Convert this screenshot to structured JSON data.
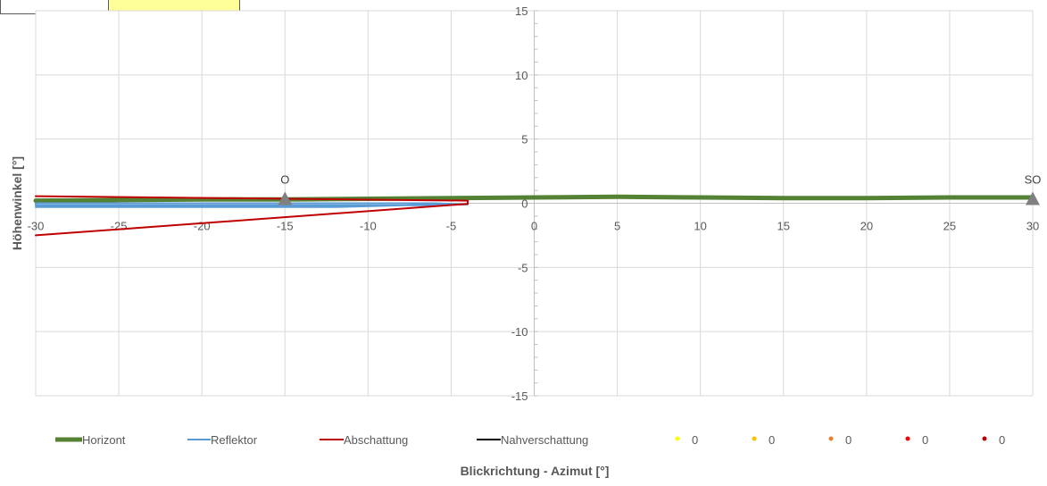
{
  "chart_data": {
    "type": "line",
    "title": "",
    "xlabel": "Blickrichtung - Azimut [°]",
    "ylabel": "Höhenwinkel [°]",
    "xlim": [
      -30,
      30
    ],
    "ylim": [
      -15,
      15
    ],
    "x_ticks": [
      "-30",
      "-25",
      "-20",
      "-15",
      "-10",
      "-5",
      "0",
      "5",
      "10",
      "15",
      "20",
      "25",
      "30"
    ],
    "y_ticks": [
      "15",
      "10",
      "5",
      "0",
      "-5",
      "-10",
      "-15"
    ],
    "grid": true,
    "legend_position": "bottom",
    "series": [
      {
        "name": "Horizont",
        "color": "#548235",
        "style": "line-thick",
        "points": [
          [
            -30,
            0.2
          ],
          [
            -25,
            0.25
          ],
          [
            -20,
            0.3
          ],
          [
            -15,
            0.3
          ],
          [
            -10,
            0.35
          ],
          [
            -5,
            0.4
          ],
          [
            0,
            0.45
          ],
          [
            5,
            0.5
          ],
          [
            10,
            0.45
          ],
          [
            15,
            0.4
          ],
          [
            20,
            0.4
          ],
          [
            25,
            0.45
          ],
          [
            30,
            0.45
          ]
        ]
      },
      {
        "name": "Reflektor",
        "color": "#5b9bd5",
        "style": "line",
        "points": [
          [
            -30,
            -0.3
          ],
          [
            -12,
            -0.3
          ],
          [
            -6,
            -0.1
          ],
          [
            -4,
            -0.1
          ],
          [
            -6,
            0.0
          ],
          [
            -30,
            0.0
          ],
          [
            -30,
            -0.15
          ],
          [
            -6,
            -0.15
          ]
        ]
      },
      {
        "name": "Abschattung",
        "color": "#c00000",
        "style": "line",
        "points": [
          [
            -30,
            0.55
          ],
          [
            -4,
            0.2
          ],
          [
            -4,
            -0.05
          ],
          [
            -30,
            -2.5
          ]
        ]
      },
      {
        "name": "Nahverschattung",
        "color": "#000000",
        "style": "line",
        "points": []
      },
      {
        "name": "0",
        "color": "#ffff00",
        "style": "marker",
        "points": []
      },
      {
        "name": "0",
        "color": "#ffc000",
        "style": "marker",
        "points": []
      },
      {
        "name": "0",
        "color": "#ed7d31",
        "style": "marker",
        "points": []
      },
      {
        "name": "0",
        "color": "#ff0000",
        "style": "marker",
        "points": []
      },
      {
        "name": "0",
        "color": "#c00000",
        "style": "marker",
        "points": []
      }
    ],
    "annotations": [
      {
        "text": "O",
        "x": -15,
        "y": 0
      },
      {
        "text": "SO",
        "x": 30,
        "y": 0
      }
    ]
  }
}
